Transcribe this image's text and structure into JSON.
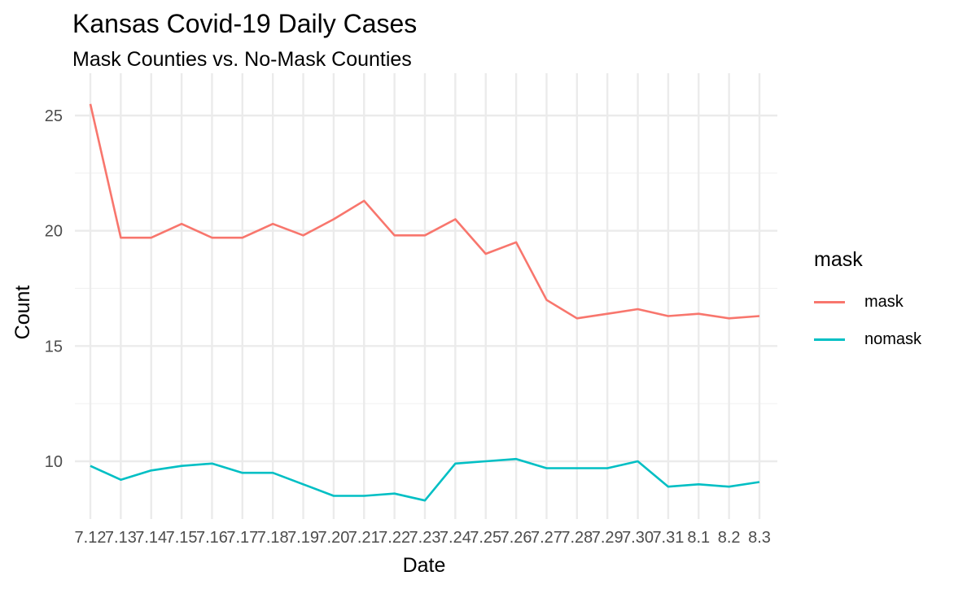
{
  "chart_data": {
    "type": "line",
    "title": "Kansas Covid-19 Daily Cases",
    "subtitle": "Mask Counties vs. No-Mask Counties",
    "xlabel": "Date",
    "ylabel": "Count",
    "categories": [
      "7.12",
      "7.13",
      "7.14",
      "7.15",
      "7.16",
      "7.17",
      "7.18",
      "7.19",
      "7.20",
      "7.21",
      "7.22",
      "7.23",
      "7.24",
      "7.25",
      "7.26",
      "7.27",
      "7.28",
      "7.29",
      "7.30",
      "7.31",
      "8.1",
      "8.2",
      "8.3"
    ],
    "y_ticks": [
      10,
      15,
      20,
      25
    ],
    "ylim": [
      7.5,
      26.2
    ],
    "grid": true,
    "legend_title": "mask",
    "legend_position": "right",
    "series": [
      {
        "name": "mask",
        "color": "#F8766D",
        "values": [
          25.5,
          19.7,
          19.7,
          20.3,
          19.7,
          19.7,
          20.3,
          19.8,
          20.5,
          21.3,
          19.8,
          19.8,
          20.5,
          19.0,
          19.5,
          17.0,
          16.2,
          16.4,
          16.6,
          16.3,
          16.4,
          16.2,
          16.3
        ]
      },
      {
        "name": "nomask",
        "color": "#00BFC4",
        "values": [
          9.8,
          9.2,
          9.6,
          9.8,
          9.9,
          9.5,
          9.5,
          9.0,
          8.5,
          8.5,
          8.6,
          8.3,
          9.9,
          10.0,
          10.1,
          9.7,
          9.7,
          9.7,
          10.0,
          8.9,
          9.0,
          8.9,
          9.1
        ]
      }
    ]
  }
}
